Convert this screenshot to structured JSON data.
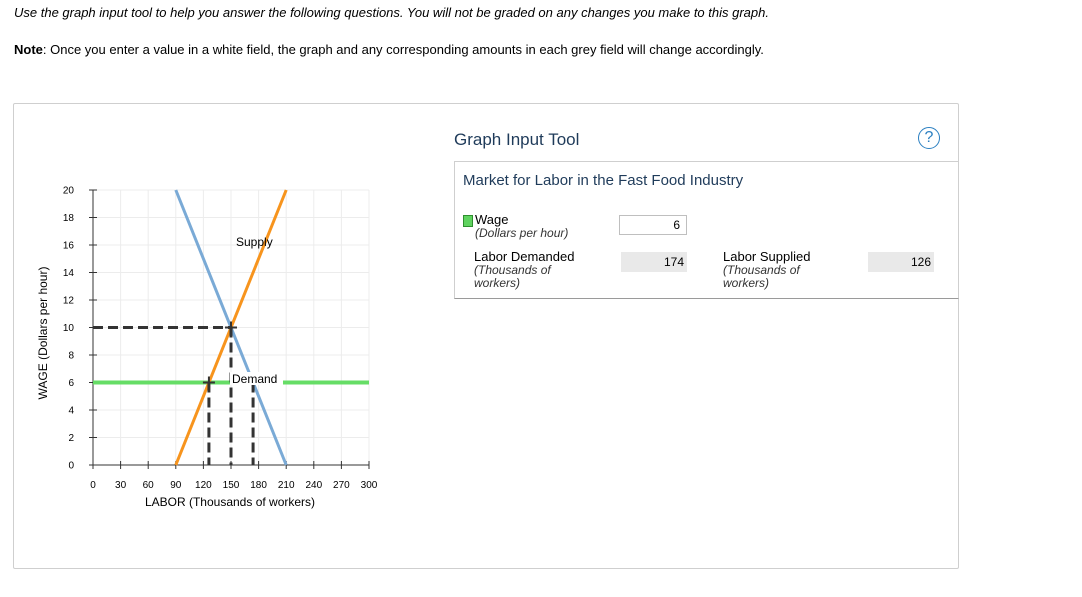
{
  "instructions": "Use the graph input tool to help you answer the following questions. You will not be graded on any changes you make to this graph.",
  "note": {
    "label": "Note",
    "text": ": Once you enter a value in a white field, the graph and any corresponding amounts in each grey field will change accordingly."
  },
  "graph": {
    "ylabel": "WAGE (Dollars per hour)",
    "xlabel": "LABOR (Thousands of workers)",
    "supply_label": "Supply",
    "demand_label": "Demand",
    "colors": {
      "supply": "#f7941d",
      "demand": "#7aaad6",
      "wage_line": "#66dd66",
      "dashed": "#333333"
    }
  },
  "chart_data": {
    "type": "line",
    "xlabel": "LABOR (Thousands of workers)",
    "ylabel": "WAGE (Dollars per hour)",
    "xlim": [
      0,
      300
    ],
    "ylim": [
      0,
      20
    ],
    "x_ticks": [
      0,
      30,
      60,
      90,
      120,
      150,
      180,
      210,
      240,
      270,
      300
    ],
    "y_ticks": [
      0,
      2,
      4,
      6,
      8,
      10,
      12,
      14,
      16,
      18,
      20
    ],
    "grid": true,
    "series": [
      {
        "name": "Supply",
        "points": [
          [
            90,
            0
          ],
          [
            210,
            20
          ]
        ]
      },
      {
        "name": "Demand",
        "points": [
          [
            90,
            20
          ],
          [
            210,
            0
          ]
        ]
      }
    ],
    "wage_line": 6,
    "equilibrium": {
      "labor": 150,
      "wage": 10
    },
    "labor_demanded_at_wage": 174,
    "labor_supplied_at_wage": 126
  },
  "tool": {
    "title": "Graph Input Tool",
    "help": "?",
    "market_title": "Market for Labor in the Fast Food Industry",
    "wage_label": "Wage",
    "wage_unit": "(Dollars per hour)",
    "wage_value": "6",
    "demanded_label": "Labor Demanded",
    "demanded_unit_1": "(Thousands of",
    "demanded_unit_2": "workers)",
    "demanded_value": "174",
    "supplied_label": "Labor Supplied",
    "supplied_unit_1": "(Thousands of",
    "supplied_unit_2": "workers)",
    "supplied_value": "126"
  }
}
